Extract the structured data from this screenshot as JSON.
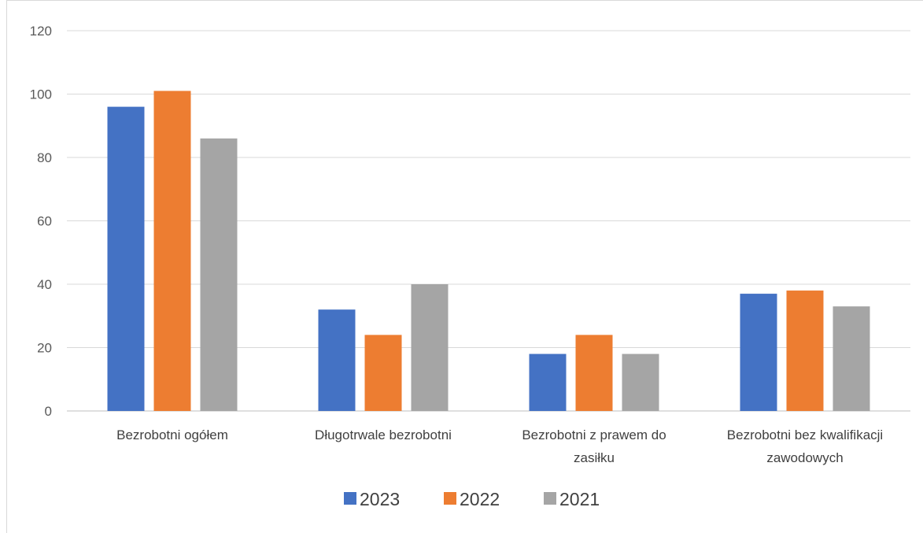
{
  "chart_data": {
    "type": "bar",
    "title": "",
    "xlabel": "",
    "ylabel": "",
    "ylim": [
      0,
      120
    ],
    "yticks": [
      "0",
      "20",
      "40",
      "60",
      "80",
      "100",
      "120"
    ],
    "grid": true,
    "legend_position": "bottom",
    "categories": [
      [
        "Bezrobotni ogółem"
      ],
      [
        "Długotrwale bezrobotni"
      ],
      [
        "Bezrobotni z prawem do",
        "zasiłku"
      ],
      [
        "Bezrobotni bez kwalifikacji",
        "zawodowych"
      ]
    ],
    "series": [
      {
        "name": "2023",
        "color": "#4472c4",
        "values": [
          96,
          32,
          18,
          37
        ]
      },
      {
        "name": "2022",
        "color": "#ed7d31",
        "values": [
          101,
          24,
          24,
          38
        ]
      },
      {
        "name": "2021",
        "color": "#a5a5a5",
        "values": [
          86,
          40,
          18,
          33
        ]
      }
    ]
  }
}
